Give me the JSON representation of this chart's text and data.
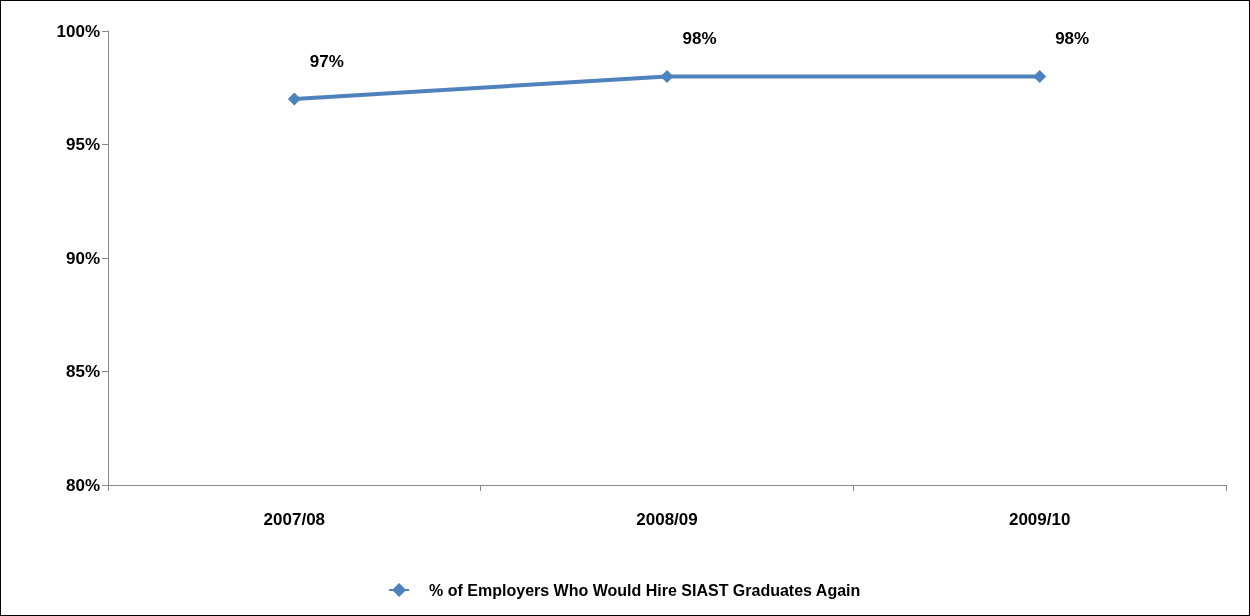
{
  "chart_data": {
    "type": "line",
    "categories": [
      "2007/08",
      "2008/09",
      "2009/10"
    ],
    "series": [
      {
        "name": "% of Employers Who Would Hire SIAST Graduates Again",
        "color": "#4f81bd",
        "values": [
          97,
          98,
          98
        ],
        "value_labels": [
          "97%",
          "98%",
          "98%"
        ]
      }
    ],
    "ylim": [
      80,
      100
    ],
    "yticks": [
      {
        "value": 80,
        "label": "80%"
      },
      {
        "value": 85,
        "label": "85%"
      },
      {
        "value": 90,
        "label": "90%"
      },
      {
        "value": 95,
        "label": "95%"
      },
      {
        "value": 100,
        "label": "100%"
      }
    ],
    "grid": false,
    "legend": "bottom",
    "marker": "diamond",
    "line_style": "solid"
  }
}
